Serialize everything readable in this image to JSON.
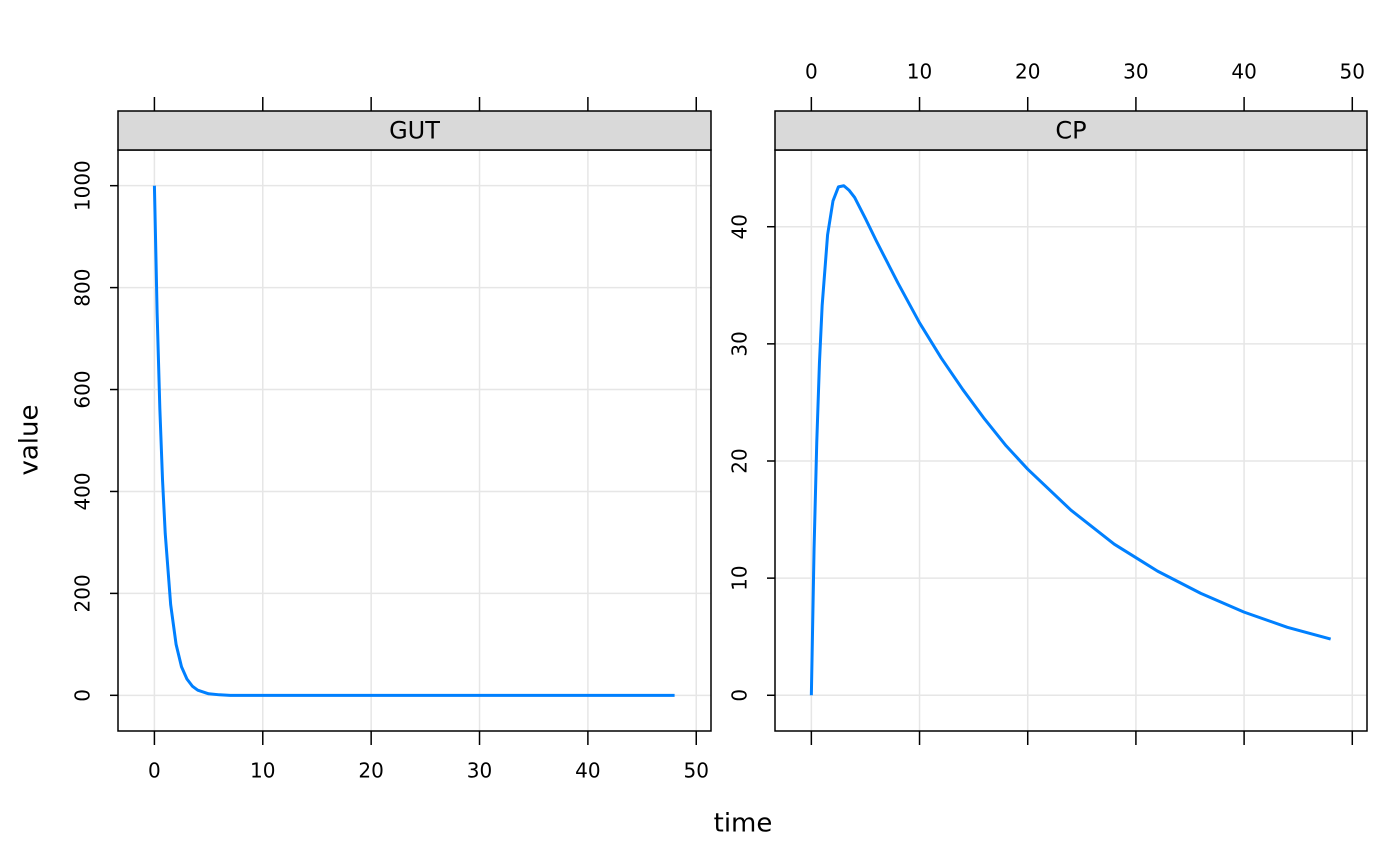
{
  "axis_labels": {
    "x": "time",
    "y": "value"
  },
  "chart_data": [
    {
      "type": "line",
      "title": "GUT",
      "x": [
        0,
        0.25,
        0.5,
        0.75,
        1,
        1.5,
        2,
        2.5,
        3,
        3.5,
        4,
        5,
        6,
        7,
        8,
        10,
        12,
        14,
        16,
        18,
        20,
        24,
        28,
        32,
        36,
        40,
        44,
        48
      ],
      "series": [
        {
          "name": "GUT",
          "color": "#0080ff",
          "values": [
            1000,
            750,
            563,
            422,
            317,
            178,
            100,
            56,
            32,
            18,
            10,
            3,
            1,
            0,
            0,
            0,
            0,
            0,
            0,
            0,
            0,
            0,
            0,
            0,
            0,
            0,
            0,
            0
          ]
        }
      ],
      "xlim": [
        -3.36,
        51.36
      ],
      "ylim": [
        -70,
        1070
      ],
      "xticks": [
        0,
        10,
        20,
        30,
        40,
        50
      ],
      "yticks": [
        0,
        200,
        400,
        600,
        800,
        1000
      ],
      "x_tick_labels_side": "bottom",
      "grid": true
    },
    {
      "type": "line",
      "title": "CP",
      "x": [
        0,
        0.25,
        0.5,
        0.75,
        1,
        1.5,
        2,
        2.5,
        3,
        3.5,
        4,
        5,
        6,
        7,
        8,
        10,
        12,
        14,
        16,
        18,
        20,
        24,
        28,
        32,
        36,
        40,
        44,
        48
      ],
      "series": [
        {
          "name": "CP",
          "color": "#0080ff",
          "values": [
            0,
            12.5,
            21.6,
            28.4,
            33.3,
            39.3,
            42.2,
            43.4,
            43.5,
            43.1,
            42.5,
            40.7,
            38.8,
            37.0,
            35.2,
            31.8,
            28.8,
            26.1,
            23.6,
            21.3,
            19.3,
            15.8,
            12.9,
            10.6,
            8.7,
            7.1,
            5.8,
            4.8
          ]
        }
      ],
      "xlim": [
        -3.36,
        51.36
      ],
      "ylim": [
        -3.05,
        46.55
      ],
      "xticks": [
        0,
        10,
        20,
        30,
        40,
        50
      ],
      "yticks": [
        0,
        10,
        20,
        30,
        40
      ],
      "x_tick_labels_side": "top",
      "grid": true
    }
  ]
}
